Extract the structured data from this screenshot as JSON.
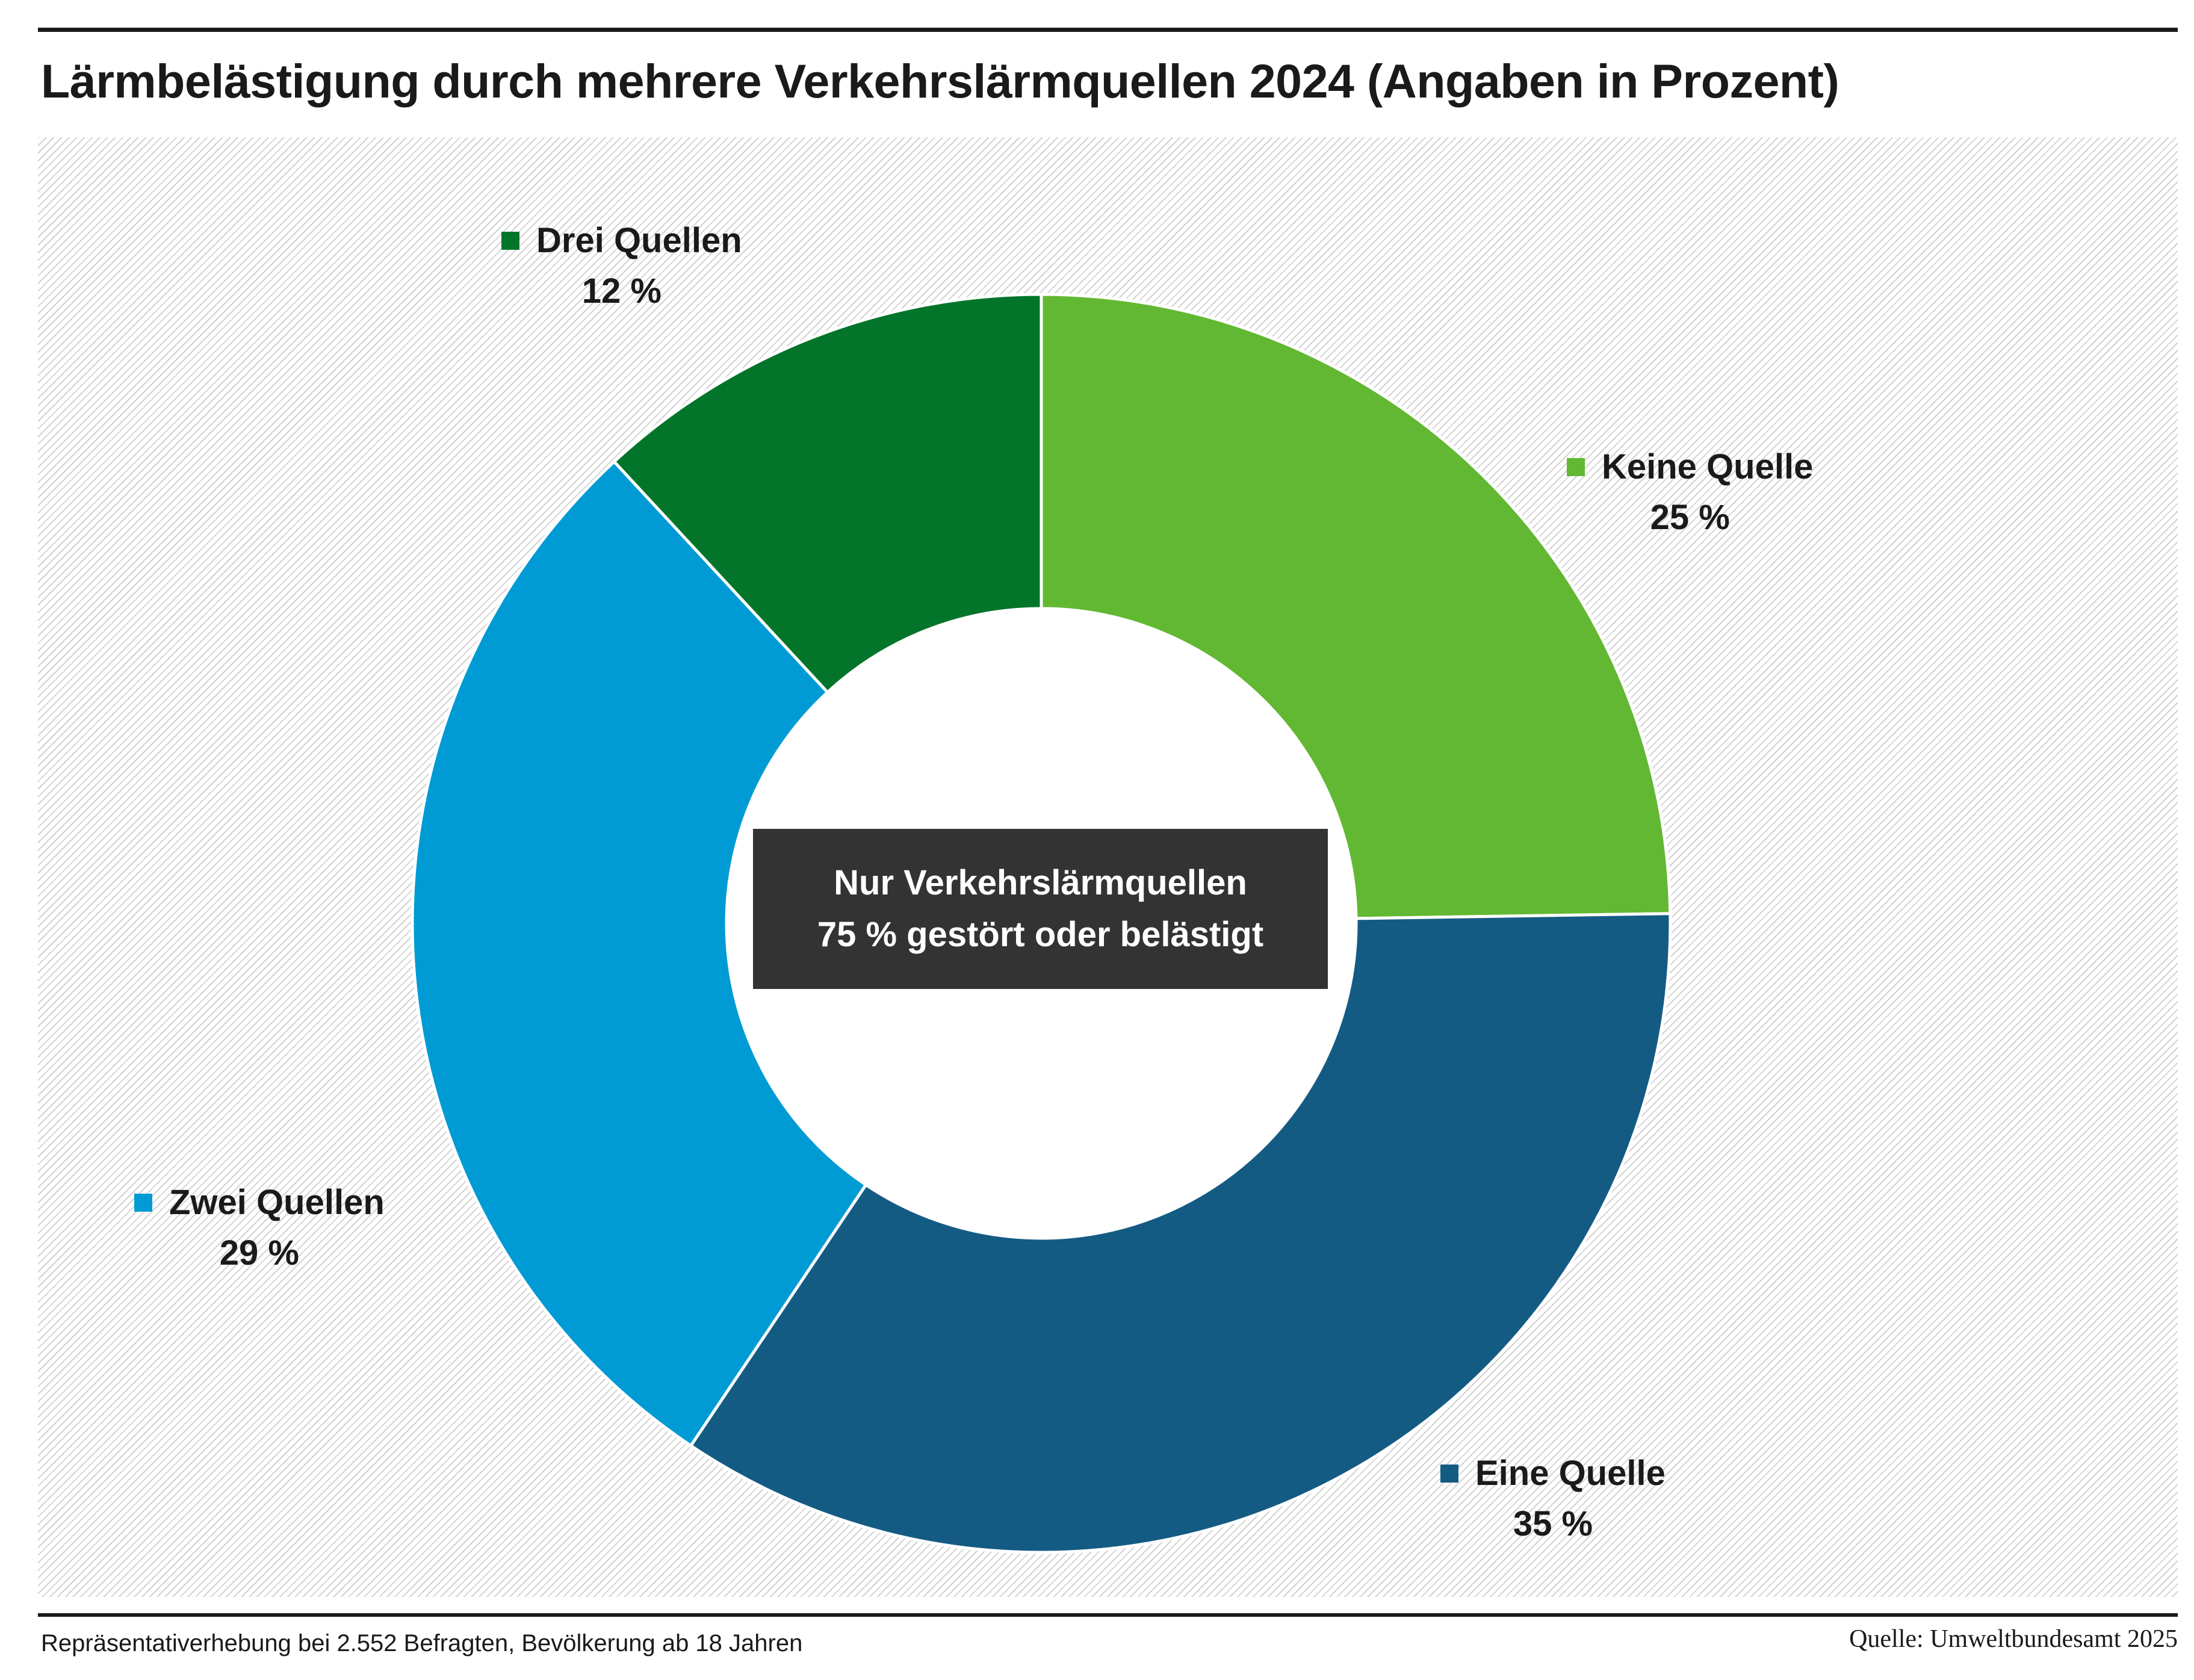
{
  "title": "Lärmbelästigung durch mehrere Verkehrslärmquellen 2024 (Angaben in Prozent)",
  "chart_data": {
    "type": "pie",
    "variant": "donut",
    "title": "Lärmbelästigung durch mehrere Verkehrslärmquellen 2024 (Angaben in Prozent)",
    "unit": "%",
    "categories": [
      "Keine Quelle",
      "Eine Quelle",
      "Zwei Quellen",
      "Drei Quellen"
    ],
    "values": [
      25,
      35,
      29,
      12
    ],
    "value_labels": [
      "25 %",
      "35 %",
      "29 %",
      "12 %"
    ],
    "colors": [
      "#62b832",
      "#145b84",
      "#009bd4",
      "#03752a"
    ],
    "legend": "labels placed next to each slice",
    "start": "top",
    "direction": "clockwise"
  },
  "center_box": {
    "line1": "Nur Verkehrslärmquellen",
    "line2": "75 % gestört oder belästigt"
  },
  "footnote": "Repräsentativerhebung bei 2.552 Befragten, Bevölkerung ab 18 Jahren",
  "source": "Quelle: Umweltbundesamt 2025"
}
